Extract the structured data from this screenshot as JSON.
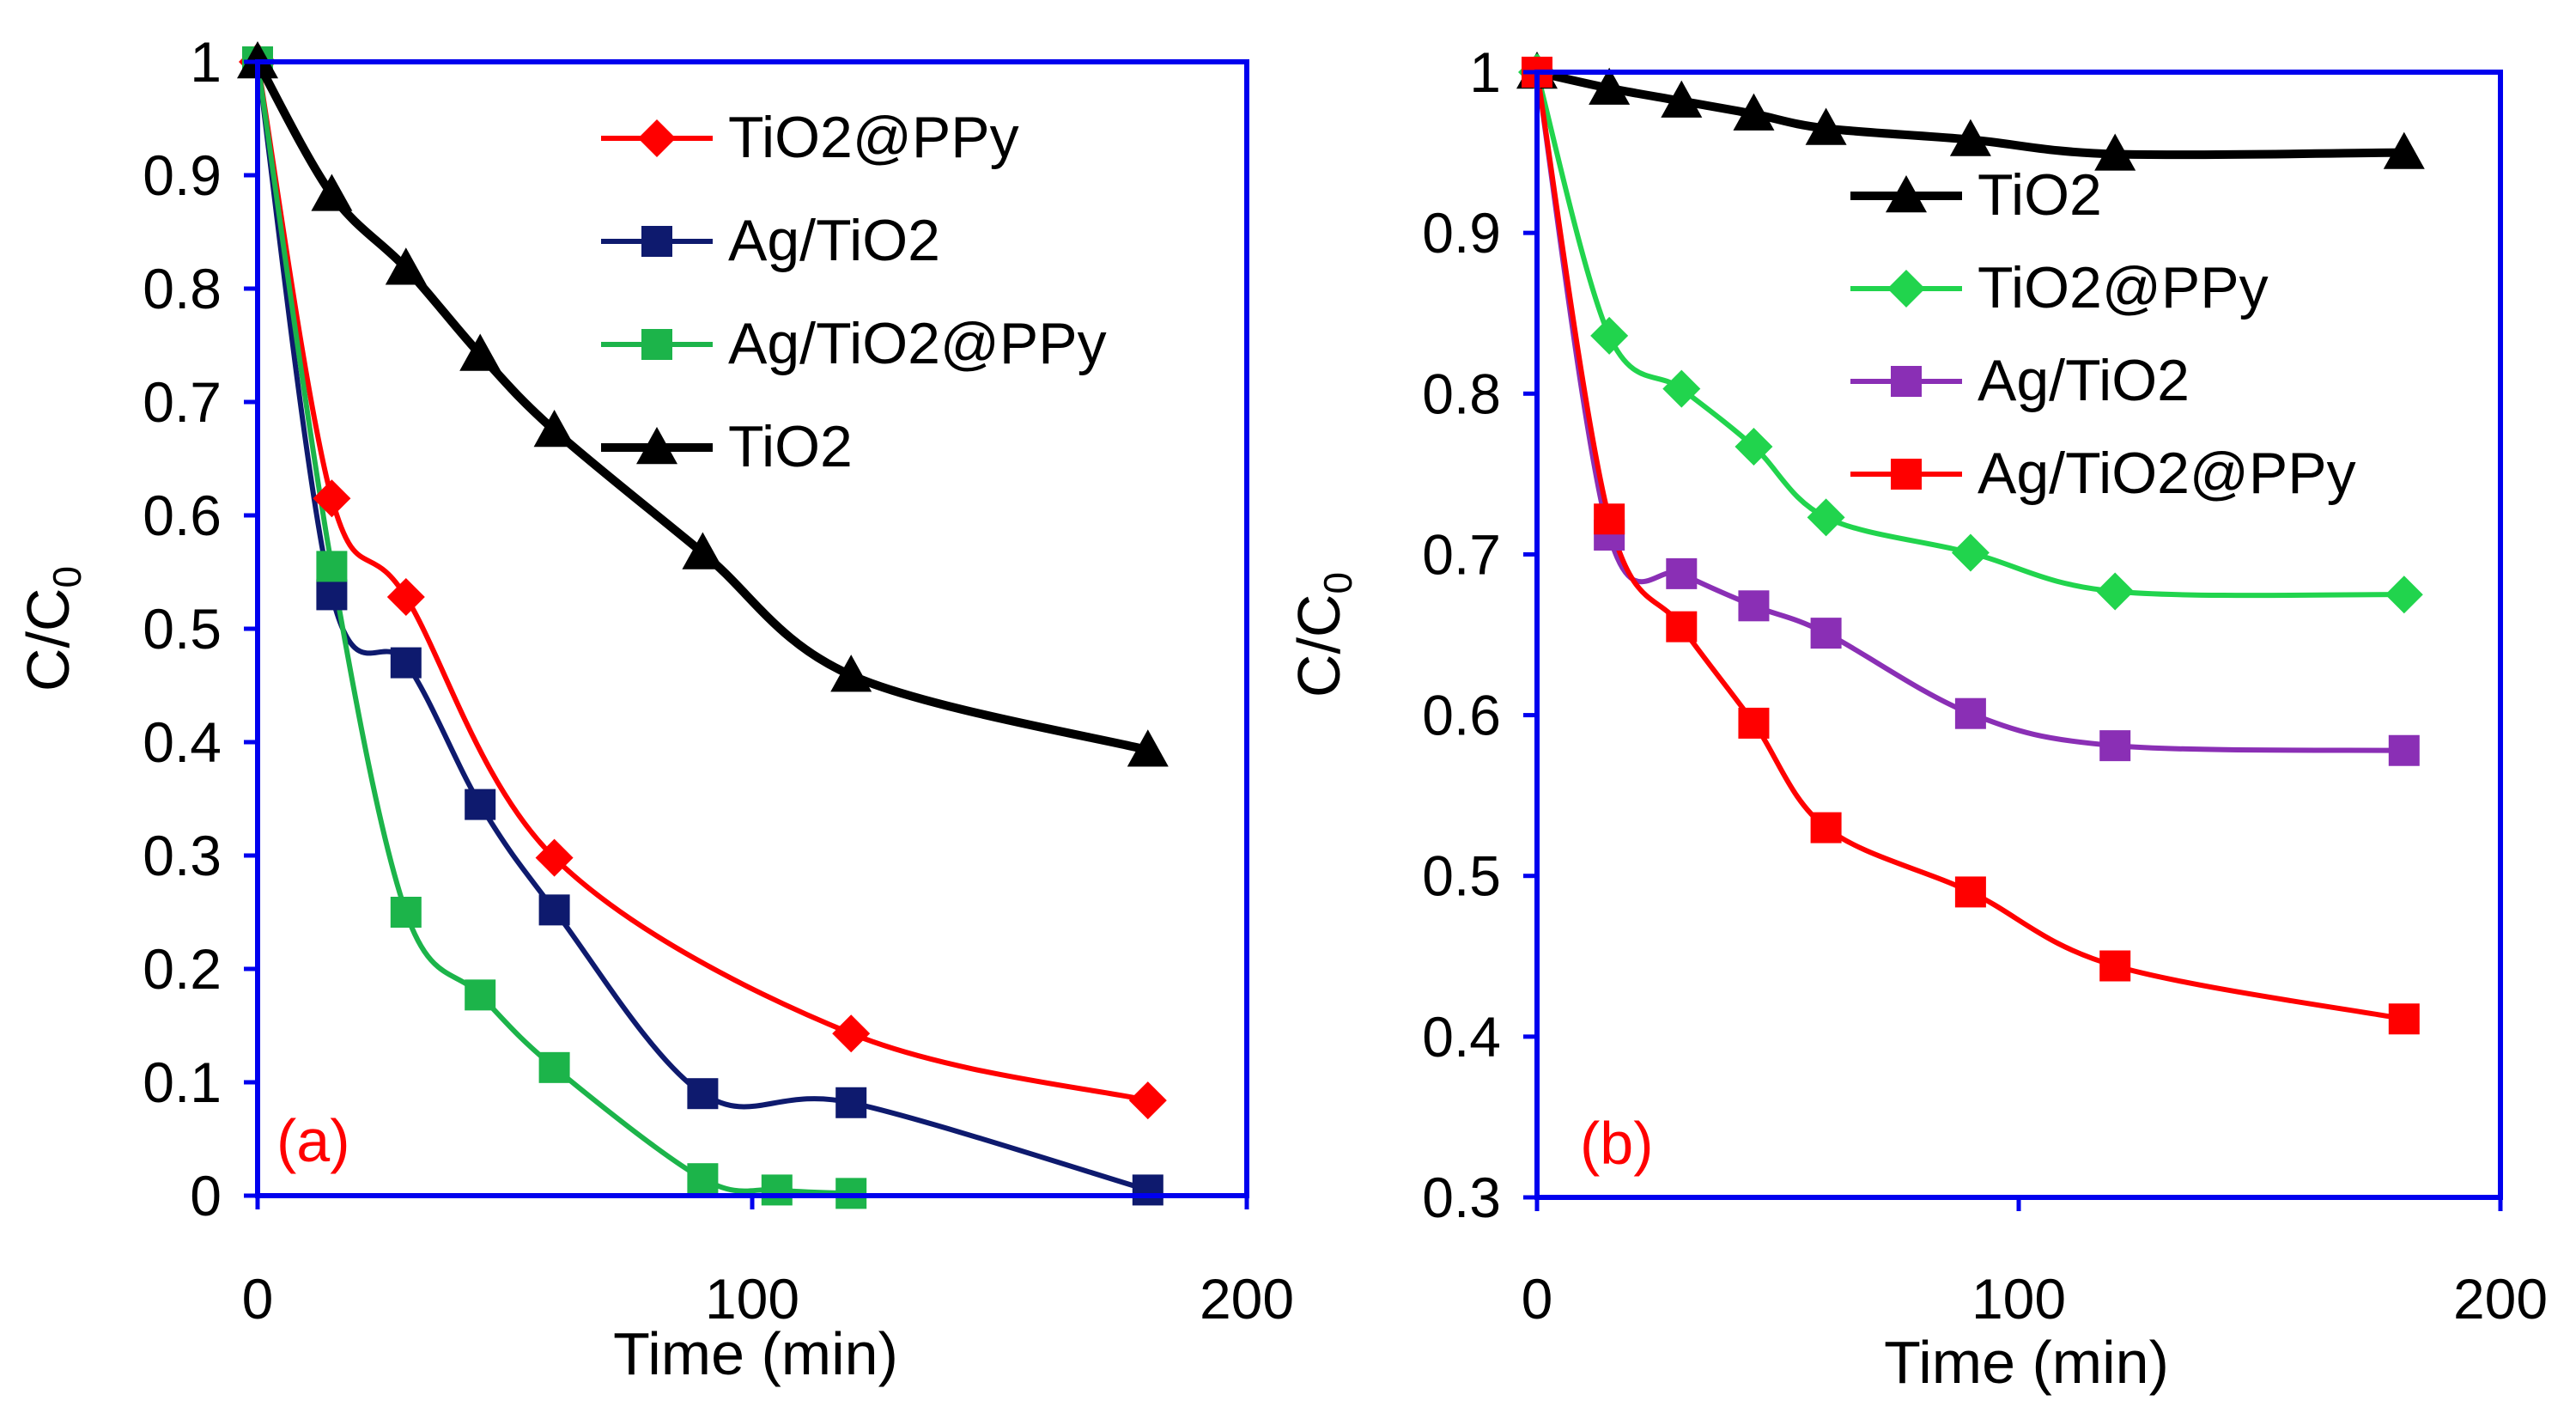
{
  "chart_data": [
    {
      "type": "line",
      "panel_label": "(a)",
      "xlabel": "Time (min)",
      "ylabel": "C/C",
      "ylabel_subscript": "0",
      "xlim": [
        0,
        200
      ],
      "ylim": [
        0,
        1
      ],
      "x_ticks": [
        0,
        100,
        200
      ],
      "x_tick_labels": [
        "0",
        "100",
        "200"
      ],
      "y_ticks": [
        0,
        0.1,
        0.2,
        0.3,
        0.4,
        0.5,
        0.6,
        0.7,
        0.8,
        0.9,
        1
      ],
      "y_tick_labels": [
        "0",
        "0.1",
        "0.2",
        "0.3",
        "0.4",
        "0.5",
        "0.6",
        "0.7",
        "0.8",
        "0.9",
        "1"
      ],
      "grid": false,
      "legend_position": "top-right",
      "series": [
        {
          "name": "TiO2@PPy",
          "color": "#ff0000",
          "marker": "diamond",
          "x": [
            0,
            15,
            30,
            60,
            120,
            180
          ],
          "y": [
            1,
            0.615,
            0.528,
            0.298,
            0.143,
            0.084
          ]
        },
        {
          "name": "Ag/TiO2",
          "color": "#0e1a6e",
          "marker": "square",
          "x": [
            0,
            15,
            30,
            45,
            60,
            90,
            120,
            180
          ],
          "y": [
            1,
            0.53,
            0.47,
            0.345,
            0.252,
            0.09,
            0.082,
            0.005
          ]
        },
        {
          "name": "Ag/TiO2@PPy",
          "color": "#1cb44a",
          "marker": "square",
          "x": [
            0,
            15,
            30,
            45,
            60,
            90,
            105,
            120
          ],
          "y": [
            1,
            0.555,
            0.25,
            0.177,
            0.113,
            0.015,
            0.005,
            0.002
          ]
        },
        {
          "name": "TiO2",
          "color": "#000000",
          "marker": "triangle",
          "x": [
            0,
            15,
            30,
            45,
            60,
            90,
            120,
            180
          ],
          "y": [
            1,
            0.883,
            0.818,
            0.742,
            0.675,
            0.567,
            0.459,
            0.393
          ]
        }
      ]
    },
    {
      "type": "line",
      "panel_label": "(b)",
      "xlabel": "Time (min)",
      "ylabel": "C/C",
      "ylabel_subscript": "0",
      "xlim": [
        0,
        200
      ],
      "ylim": [
        0.3,
        1
      ],
      "x_ticks": [
        0,
        100,
        200
      ],
      "x_tick_labels": [
        "0",
        "100",
        "200"
      ],
      "y_ticks": [
        0.3,
        0.4,
        0.5,
        0.6,
        0.7,
        0.8,
        0.9,
        1
      ],
      "y_tick_labels": [
        "0.3",
        "0.4",
        "0.5",
        "0.6",
        "0.7",
        "0.8",
        "0.9",
        "1"
      ],
      "grid": false,
      "legend_position": "top-right",
      "series": [
        {
          "name": "TiO2",
          "color": "#000000",
          "marker": "triangle",
          "x": [
            0,
            15,
            30,
            45,
            60,
            90,
            120,
            180
          ],
          "y": [
            1,
            0.99,
            0.982,
            0.974,
            0.965,
            0.958,
            0.949,
            0.95
          ]
        },
        {
          "name": "TiO2@PPy",
          "color": "#21d44d",
          "marker": "diamond",
          "x": [
            0,
            15,
            30,
            45,
            60,
            90,
            120,
            180
          ],
          "y": [
            1,
            0.836,
            0.803,
            0.767,
            0.723,
            0.701,
            0.677,
            0.675
          ]
        },
        {
          "name": "Ag/TiO2",
          "color": "#8a2fb5",
          "marker": "square",
          "x": [
            0,
            15,
            30,
            45,
            60,
            90,
            120,
            180
          ],
          "y": [
            1,
            0.712,
            0.688,
            0.668,
            0.651,
            0.601,
            0.581,
            0.578
          ]
        },
        {
          "name": "Ag/TiO2@PPy",
          "color": "#ff0000",
          "marker": "square",
          "x": [
            0,
            15,
            30,
            45,
            60,
            90,
            120,
            180
          ],
          "y": [
            1,
            0.722,
            0.655,
            0.595,
            0.53,
            0.49,
            0.444,
            0.411
          ]
        }
      ]
    }
  ]
}
